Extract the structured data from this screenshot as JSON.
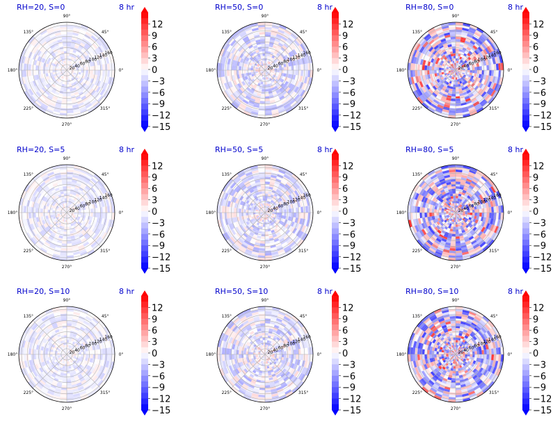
{
  "chart_data": {
    "type": "polar_heatmap",
    "colormap": "bwr",
    "grid": true,
    "rows": 3,
    "cols": 3,
    "time_label": "8 hr",
    "angle_ticks": [
      "0°",
      "45°",
      "90°",
      "135°",
      "180°",
      "225°",
      "270°",
      "315°"
    ],
    "radial_ticks": [
      "20",
      "40",
      "60",
      "80",
      "100",
      "120",
      "140",
      "160"
    ],
    "radial_range": [
      0,
      170
    ],
    "colorbar": {
      "range": [
        -15,
        15
      ],
      "ticks": [
        "12",
        "9",
        "6",
        "3",
        "0",
        "−3",
        "−6",
        "−9",
        "−12",
        "−15"
      ],
      "extend": "both"
    },
    "panels": [
      {
        "title": "RH=20, S=0",
        "intensity": 0.25
      },
      {
        "title": "RH=50, S=0",
        "intensity": 0.45
      },
      {
        "title": "RH=80, S=0",
        "intensity": 1.0
      },
      {
        "title": "RH=20, S=5",
        "intensity": 0.25
      },
      {
        "title": "RH=50, S=5",
        "intensity": 0.45
      },
      {
        "title": "RH=80, S=5",
        "intensity": 1.0
      },
      {
        "title": "RH=20, S=10",
        "intensity": 0.25
      },
      {
        "title": "RH=50, S=10",
        "intensity": 0.45
      },
      {
        "title": "RH=80, S=10",
        "intensity": 1.0
      }
    ]
  }
}
